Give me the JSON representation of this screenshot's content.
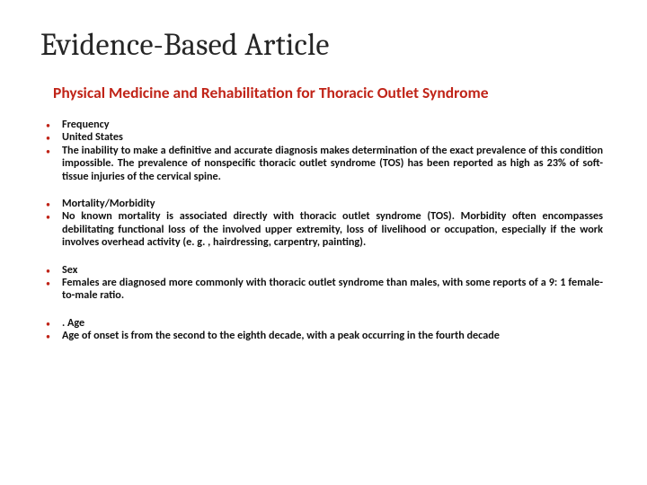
{
  "title": "Evidence-Based Article",
  "subtitle": "Physical Medicine and Rehabilitation for Thoracic Outlet Syndrome",
  "bullet_color": "#c02418",
  "subtitle_color": "#c02418",
  "title_color": "#262626",
  "text_color": "#111111",
  "groups": [
    {
      "items": [
        "Frequency",
        "United States",
        "The inability to make a definitive and accurate diagnosis makes determination of the exact prevalence of this condition impossible. The prevalence of nonspecific thoracic outlet syndrome (TOS) has been reported as high as 23% of soft-tissue injuries of the cervical spine."
      ]
    },
    {
      "items": [
        "Mortality/Morbidity",
        "No known mortality is associated directly with thoracic outlet syndrome (TOS). Morbidity often encompasses debilitating functional loss of the involved upper extremity, loss of livelihood or occupation, especially if the work involves overhead activity (e. g. , hairdressing, carpentry, painting)."
      ]
    },
    {
      "items": [
        "Sex",
        "Females are diagnosed more commonly with thoracic outlet syndrome than males, with some reports of a 9: 1 female-to-male ratio."
      ]
    },
    {
      "items": [
        ". Age",
        "Age of onset is from the second to the eighth decade, with a peak occurring in the fourth decade"
      ]
    }
  ]
}
